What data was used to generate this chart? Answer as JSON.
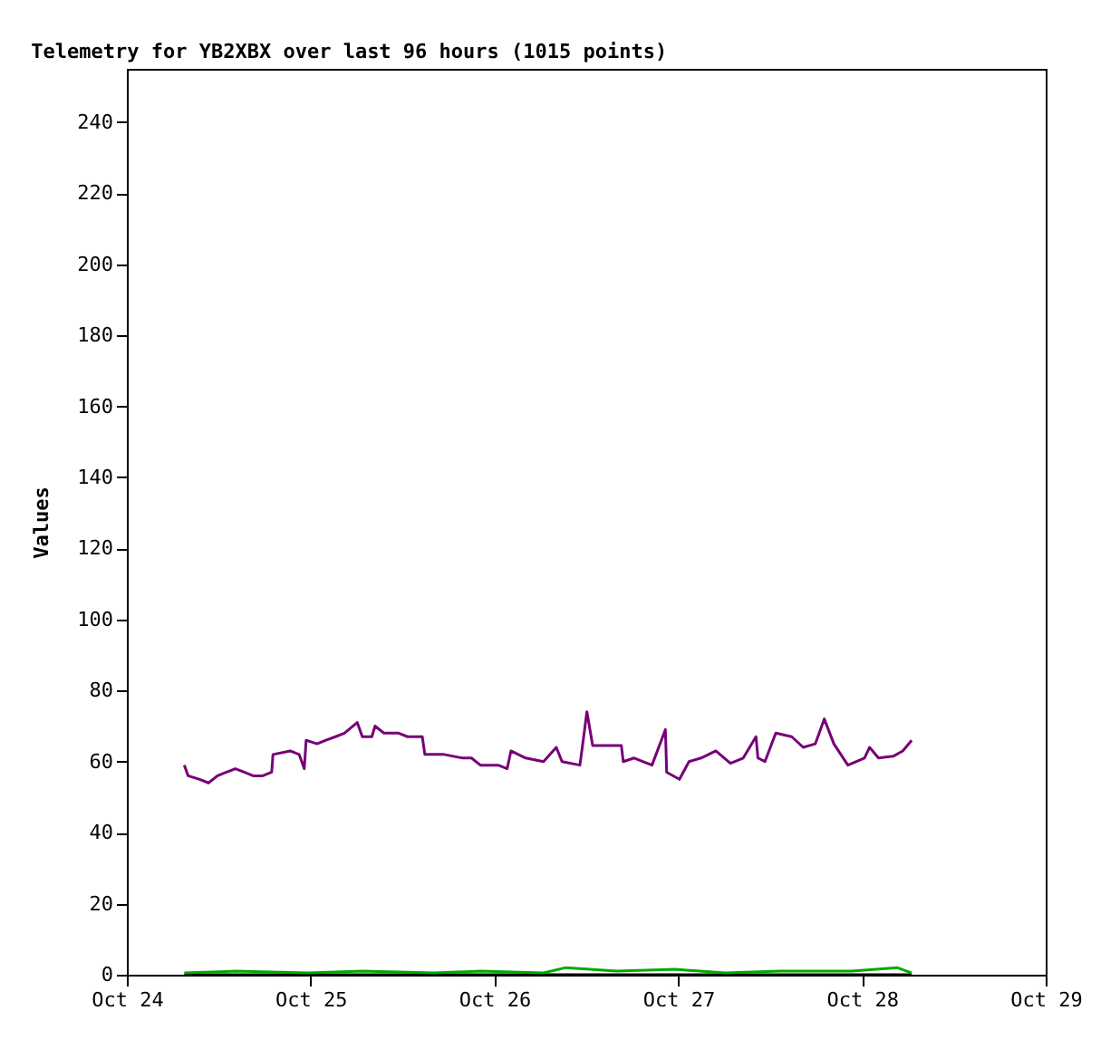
{
  "chart_data": {
    "type": "line",
    "title": "Telemetry for YB2XBX over last 96 hours (1015 points)",
    "ylabel": "Values",
    "xlim": [
      "--10-24",
      "--10-29"
    ],
    "xticks": [
      {
        "value": "--10-24",
        "label": "Oct 24"
      },
      {
        "value": "--10-25",
        "label": "Oct 25"
      },
      {
        "value": "--10-26",
        "label": "Oct 26"
      },
      {
        "value": "--10-27",
        "label": "Oct 27"
      },
      {
        "value": "--10-28",
        "label": "Oct 28"
      },
      {
        "value": "--10-29",
        "label": "Oct 29"
      }
    ],
    "ylim": [
      0,
      255
    ],
    "yticks": [
      0,
      20,
      40,
      60,
      80,
      100,
      120,
      140,
      160,
      180,
      200,
      220,
      240
    ],
    "grid": false,
    "series": [
      {
        "color": "#000000",
        "x": [
          "--10-24T07:30",
          "--10-28T06:30"
        ],
        "values": [
          0,
          0
        ]
      },
      {
        "color": "#00aa00",
        "x": [
          "--10-24T07:30",
          "--10-24T14:10",
          "--10-24T23:40",
          "--10-25T06:45",
          "--10-25T16:10",
          "--10-25T22:10",
          "--10-26T06:25",
          "--10-26T09:20",
          "--10-26T16:00",
          "--10-26T23:35",
          "--10-27T06:10",
          "--10-27T13:15",
          "--10-27T22:40",
          "--10-28T04:35",
          "--10-28T06:30"
        ],
        "values": [
          0.5,
          1,
          0.5,
          1,
          0.5,
          1,
          0.5,
          2,
          1,
          1.5,
          0.5,
          1,
          1,
          2,
          0.5
        ]
      },
      {
        "color": "#770077",
        "x": [
          "--10-24T07:30",
          "--10-24T08:00",
          "--10-24T09:30",
          "--10-24T10:40",
          "--10-24T11:50",
          "--10-24T13:00",
          "--10-24T14:10",
          "--10-24T15:20",
          "--10-24T16:30",
          "--10-24T17:45",
          "--10-24T18:55",
          "--10-24T19:05",
          "--10-24T21:20",
          "--10-24T22:30",
          "--10-24T23:10",
          "--10-24T23:25",
          "--10-25T00:50",
          "--10-25T02:00",
          "--10-25T03:15",
          "--10-25T04:25",
          "--10-25T06:05",
          "--10-25T06:45",
          "--10-25T08:00",
          "--10-25T08:25",
          "--10-25T09:35",
          "--10-25T11:30",
          "--10-25T12:40",
          "--10-25T14:35",
          "--10-25T14:55",
          "--10-25T17:25",
          "--10-25T19:50",
          "--10-25T21:00",
          "--10-25T22:10",
          "--10-26T00:30",
          "--10-26T01:40",
          "--10-26T02:10",
          "--10-26T04:05",
          "--10-26T06:25",
          "--10-26T08:05",
          "--10-26T08:50",
          "--10-26T11:10",
          "--10-26T11:25",
          "--10-26T12:05",
          "--10-26T12:50",
          "--10-26T16:35",
          "--10-26T16:50",
          "--10-26T18:15",
          "--10-26T20:35",
          "--10-26T22:20",
          "--10-26T22:30",
          "--10-27T00:10",
          "--10-27T01:25",
          "--10-27T03:00",
          "--10-27T04:55",
          "--10-27T06:50",
          "--10-27T08:30",
          "--10-27T10:10",
          "--10-27T10:25",
          "--10-27T11:20",
          "--10-27T12:45",
          "--10-27T14:50",
          "--10-27T16:20",
          "--10-27T17:55",
          "--10-27T19:05",
          "--10-27T20:20",
          "--10-27T22:10",
          "--10-28T00:20",
          "--10-28T01:00",
          "--10-28T02:10",
          "--10-28T04:05",
          "--10-28T05:20",
          "--10-28T06:30"
        ],
        "values": [
          59,
          56,
          55,
          54,
          56,
          57,
          58,
          57,
          56,
          56,
          57,
          62,
          63,
          62,
          58,
          66,
          65,
          66,
          67,
          68,
          71,
          67,
          67,
          70,
          68,
          68,
          67,
          67,
          62,
          62,
          61,
          61,
          59,
          59,
          58,
          63,
          61,
          60,
          64,
          60,
          59,
          63,
          74,
          64.5,
          64.5,
          60,
          61,
          59,
          69,
          57,
          55,
          60,
          61,
          63,
          59.5,
          61,
          67,
          61,
          60,
          68,
          67,
          64,
          65,
          72,
          65,
          59,
          61,
          64,
          61,
          61.5,
          63,
          66
        ]
      }
    ]
  }
}
